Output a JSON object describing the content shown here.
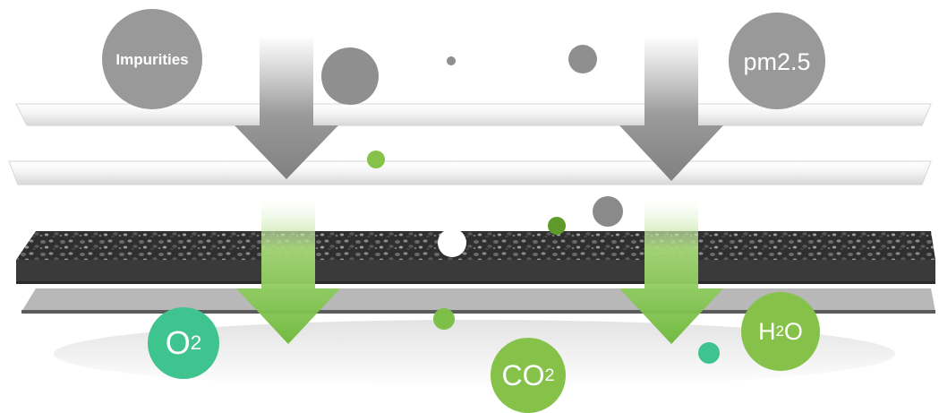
{
  "labels": {
    "impurities": "Impurities",
    "pm25": "pm2.5",
    "o2": {
      "main": "O",
      "sub": "2"
    },
    "co2": {
      "main": "CO",
      "sub": "2"
    },
    "h2o": {
      "main": "H",
      "sub": "2",
      "tail": "O"
    }
  },
  "colors": {
    "particle_gray": "#999999",
    "particle_dark_gray": "#8a8a8a",
    "arrow_gray": "#8f8f8f",
    "arrow_green": "#7cc04a",
    "bubble_teal": "#3fc38f",
    "bubble_green": "#86c24a",
    "carbon_layer": "#3a3a3a",
    "sheet_light": "#f2f2f2",
    "sheet_gray": "#9a9a9a"
  }
}
